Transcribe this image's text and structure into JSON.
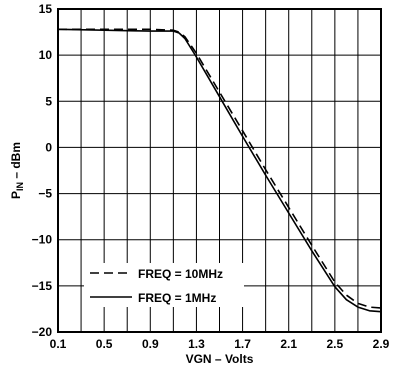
{
  "chart_data": {
    "type": "line",
    "title": "",
    "xlabel": "VGN – Volts",
    "ylabel_main": "P",
    "ylabel_sub": "IN",
    "ylabel_tail": " – dBm",
    "xlim": [
      0.1,
      2.9
    ],
    "ylim": [
      -20,
      15
    ],
    "x_ticks": [
      0.1,
      0.5,
      0.9,
      1.3,
      1.7,
      2.1,
      2.5,
      2.9
    ],
    "x_tick_labels": [
      "0.1",
      "0.5",
      "0.9",
      "1.3",
      "1.7",
      "2.1",
      "2.5",
      "2.9"
    ],
    "y_ticks": [
      -20,
      -15,
      -10,
      -5,
      0,
      5,
      10,
      15
    ],
    "y_tick_labels": [
      "−20",
      "−15",
      "−10",
      "−5",
      "0",
      "5",
      "10",
      "15"
    ],
    "x_grid": [
      0.3,
      0.5,
      0.7,
      0.9,
      1.1,
      1.3,
      1.5,
      1.7,
      1.9,
      2.1,
      2.3,
      2.5,
      2.7
    ],
    "y_grid": [
      -15,
      -10,
      -5,
      0,
      5,
      10
    ],
    "grid": true,
    "legend_position": "bottom-left",
    "series": [
      {
        "name": "FREQ = 10MHz",
        "style": "dashed",
        "x": [
          0.1,
          0.5,
          0.9,
          1.1,
          1.15,
          1.2,
          1.3,
          1.5,
          1.7,
          1.9,
          2.1,
          2.3,
          2.5,
          2.6,
          2.7,
          2.8,
          2.9
        ],
        "y": [
          12.8,
          12.8,
          12.8,
          12.7,
          12.5,
          12.0,
          10.2,
          6.0,
          1.8,
          -2.4,
          -6.5,
          -10.6,
          -14.6,
          -16.0,
          -16.9,
          -17.3,
          -17.4
        ]
      },
      {
        "name": "FREQ = 1MHz",
        "style": "solid",
        "x": [
          0.1,
          0.5,
          0.9,
          1.1,
          1.15,
          1.2,
          1.3,
          1.5,
          1.7,
          1.9,
          2.1,
          2.3,
          2.5,
          2.6,
          2.7,
          2.8,
          2.9
        ],
        "y": [
          12.8,
          12.7,
          12.6,
          12.6,
          12.4,
          11.8,
          9.8,
          5.5,
          1.2,
          -3.0,
          -7.1,
          -11.2,
          -15.1,
          -16.5,
          -17.3,
          -17.7,
          -17.8
        ]
      }
    ]
  }
}
